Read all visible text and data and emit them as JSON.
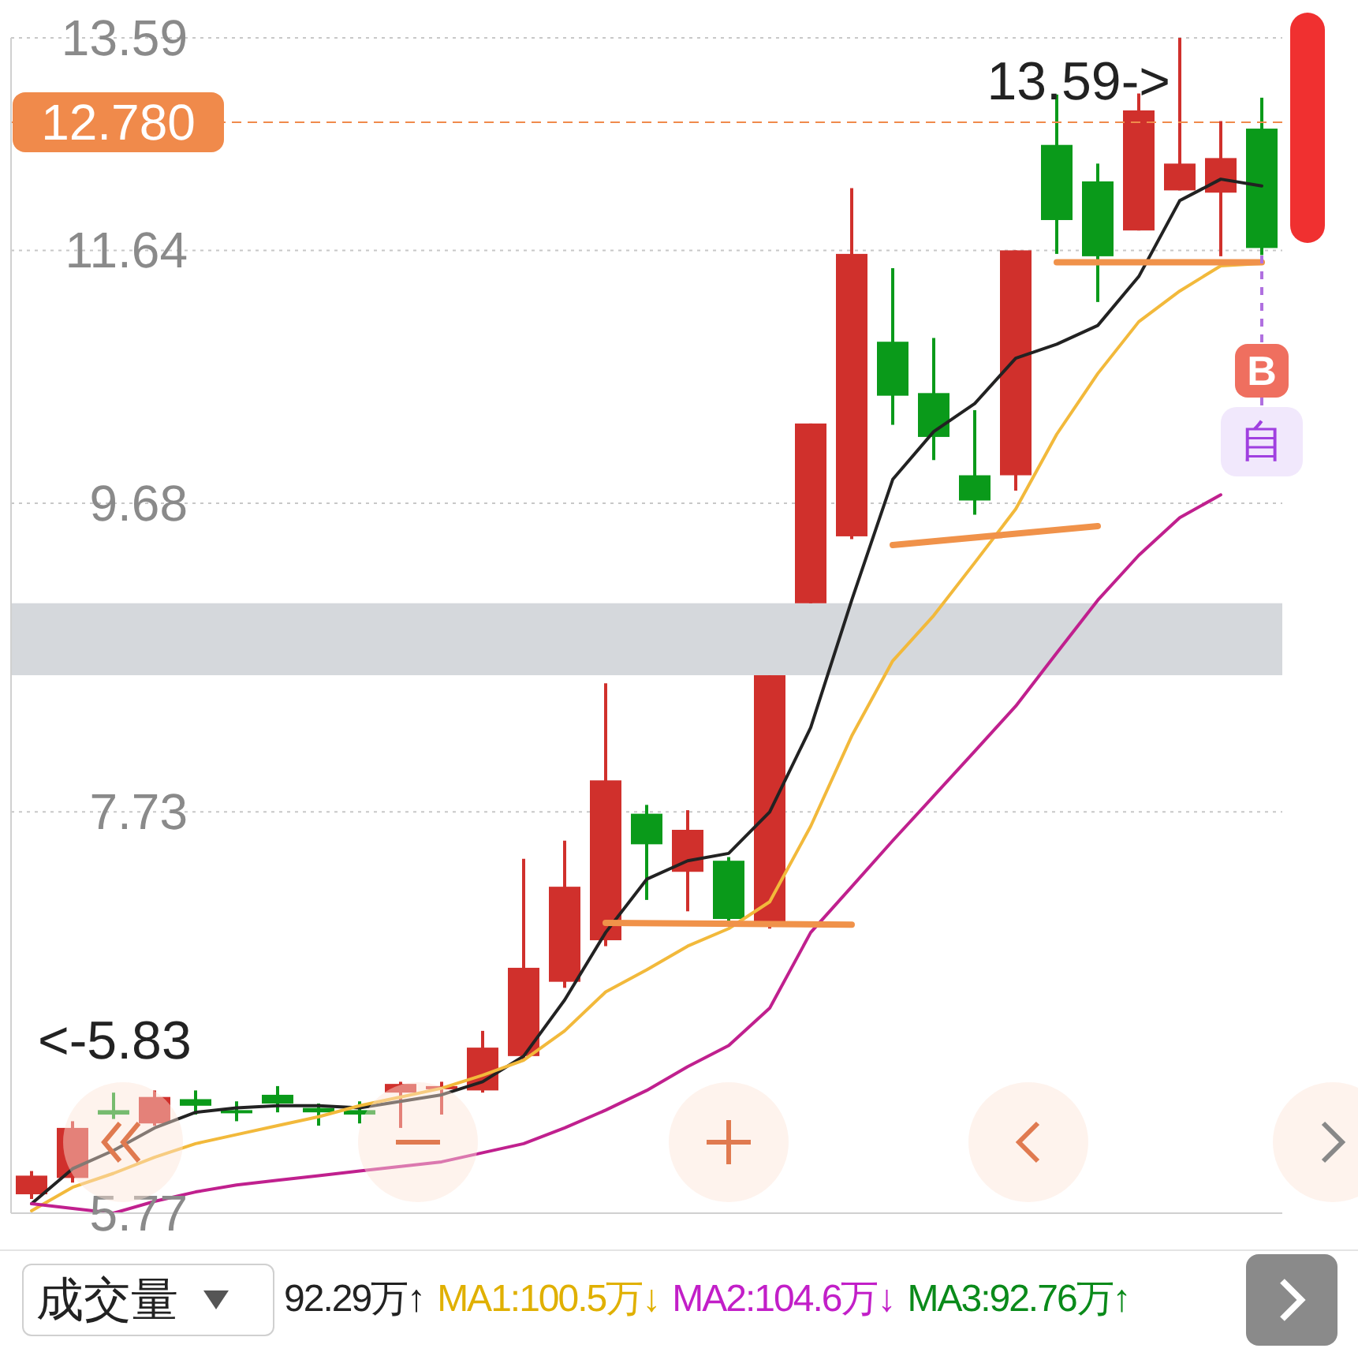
{
  "chart_data": {
    "type": "candlestick",
    "categories": [
      null,
      null,
      null,
      null,
      null,
      null,
      null,
      null,
      null,
      null,
      null,
      null,
      null,
      null,
      null,
      null,
      null,
      null,
      null,
      null,
      null,
      null,
      null,
      null,
      null,
      null,
      null,
      null,
      null,
      null,
      null
    ],
    "ohlc": [
      [
        5.85,
        5.95,
        5.83,
        5.93
      ],
      [
        5.92,
        6.17,
        5.9,
        6.14
      ],
      [
        6.22,
        6.3,
        6.18,
        6.2
      ],
      [
        6.16,
        6.31,
        6.15,
        6.28
      ],
      [
        6.27,
        6.31,
        6.2,
        6.24
      ],
      [
        6.22,
        6.26,
        6.17,
        6.21
      ],
      [
        6.29,
        6.33,
        6.21,
        6.25
      ],
      [
        6.23,
        6.25,
        6.15,
        6.21
      ],
      [
        6.22,
        6.26,
        6.16,
        6.2
      ],
      [
        6.3,
        6.35,
        6.14,
        6.34
      ],
      [
        6.32,
        6.35,
        6.2,
        6.33
      ],
      [
        6.31,
        6.59,
        6.3,
        6.51
      ],
      [
        6.47,
        7.47,
        6.45,
        6.9
      ],
      [
        6.83,
        7.57,
        6.8,
        7.32
      ],
      [
        7.04,
        8.49,
        7.01,
        7.91
      ],
      [
        7.72,
        7.77,
        7.25,
        7.55
      ],
      [
        7.4,
        7.74,
        7.19,
        7.63
      ],
      [
        7.46,
        7.48,
        7.14,
        7.15
      ],
      [
        7.13,
        8.54,
        7.1,
        8.54
      ],
      [
        9.0,
        10.26,
        9.0,
        10.26
      ],
      [
        9.45,
        12.18,
        9.43,
        11.61
      ],
      [
        10.89,
        11.49,
        10.25,
        10.47
      ],
      [
        10.49,
        10.92,
        9.99,
        10.16
      ],
      [
        9.88,
        10.36,
        9.6,
        9.7
      ],
      [
        9.88,
        11.64,
        9.77,
        11.64
      ],
      [
        12.57,
        13.04,
        11.61,
        11.9
      ],
      [
        12.24,
        12.4,
        11.21,
        11.59
      ],
      [
        11.81,
        13.05,
        11.81,
        12.89
      ],
      [
        12.16,
        13.59,
        12.16,
        12.4
      ],
      [
        12.14,
        12.79,
        11.59,
        12.45
      ],
      [
        12.72,
        13.01,
        11.6,
        11.66
      ]
    ],
    "colors": [
      "#d0302c",
      "#d0302c",
      "#0a9a1a",
      "#d0302c",
      "#0a9a1a",
      "#0a9a1a",
      "#0a9a1a",
      "#0a9a1a",
      "#0a9a1a",
      "#d0302c",
      "#d0302c",
      "#d0302c",
      "#d0302c",
      "#d0302c",
      "#d0302c",
      "#0a9a1a",
      "#d0302c",
      "#0a9a1a",
      "#d0302c",
      "#d0302c",
      "#d0302c",
      "#0a9a1a",
      "#0a9a1a",
      "#0a9a1a",
      "#d0302c",
      "#0a9a1a",
      "#0a9a1a",
      "#d0302c",
      "#d0302c",
      "#d0302c",
      "#0a9a1a"
    ],
    "series": [
      {
        "type": "line",
        "color": "#222222",
        "values": [
          5.81,
          5.96,
          6.04,
          6.14,
          6.21,
          6.23,
          6.24,
          6.24,
          6.23,
          6.26,
          6.29,
          6.35,
          6.47,
          6.74,
          7.08,
          7.36,
          7.46,
          7.5,
          7.73,
          8.22,
          9.02,
          9.85,
          10.2,
          10.41,
          10.76,
          10.87,
          11.02,
          11.42,
          12.07,
          12.26,
          12.2
        ]
      },
      {
        "type": "line",
        "color": "#f2b93b",
        "values": [
          5.78,
          5.88,
          5.94,
          6.01,
          6.07,
          6.11,
          6.15,
          6.19,
          6.24,
          6.28,
          6.32,
          6.38,
          6.45,
          6.59,
          6.78,
          6.89,
          7.01,
          7.1,
          7.24,
          7.65,
          8.17,
          8.63,
          8.92,
          9.27,
          9.64,
          10.18,
          10.64,
          11.05,
          11.3,
          11.51,
          11.53
        ]
      },
      {
        "type": "line",
        "color": "#c0208e",
        "values": [
          5.81,
          5.79,
          5.77,
          5.82,
          5.86,
          5.89,
          5.91,
          5.93,
          5.95,
          5.97,
          5.99,
          6.03,
          6.07,
          6.14,
          6.22,
          6.31,
          6.42,
          6.52,
          6.7,
          7.08,
          7.32,
          7.57,
          7.82,
          8.08,
          8.35,
          8.68,
          9.02,
          9.32,
          9.58,
          9.74,
          null
        ]
      },
      {
        "type": "line",
        "color": "#f0924a",
        "values": [
          null,
          null,
          null,
          null,
          null,
          null,
          null,
          null,
          null,
          null,
          null,
          null,
          null,
          null,
          7.13,
          null,
          null,
          null,
          null,
          null,
          7.12,
          null,
          null,
          null,
          null,
          null,
          null,
          null,
          null,
          null,
          null
        ]
      },
      {
        "type": "line",
        "color": "#f0924a",
        "values": [
          null,
          null,
          null,
          null,
          null,
          null,
          null,
          null,
          null,
          null,
          null,
          null,
          null,
          null,
          null,
          null,
          null,
          null,
          null,
          null,
          null,
          9.39,
          null,
          null,
          null,
          null,
          9.52,
          null,
          null,
          null,
          null
        ]
      },
      {
        "type": "line",
        "color": "#f0924a",
        "values": [
          null,
          null,
          null,
          null,
          null,
          null,
          null,
          null,
          null,
          null,
          null,
          null,
          null,
          null,
          null,
          null,
          null,
          null,
          null,
          null,
          null,
          null,
          null,
          null,
          null,
          11.54,
          null,
          null,
          null,
          null,
          11.54
        ]
      }
    ],
    "ylim": [
      5.77,
      13.59
    ],
    "yticks": [
      5.77,
      7.73,
      9.68,
      11.64,
      13.59
    ],
    "log": true,
    "grid": "y",
    "tick_labels": "y",
    "ref_lines": [
      {
        "axis": "y",
        "value": 12.78,
        "label": "12.780",
        "color": "#f08a4b",
        "line_style": "dashed"
      }
    ],
    "bands": [
      {
        "axis": "y",
        "from": 8.54,
        "to": 9.0,
        "color": "#d5d8dc"
      }
    ],
    "annotations": [
      "13.59->",
      "<-5.83",
      "B",
      "自",
      "成交量",
      "92.29万↑",
      "MA1:100.5万↓",
      "MA2:104.6万↓",
      "MA3:92.76万↑"
    ]
  }
}
